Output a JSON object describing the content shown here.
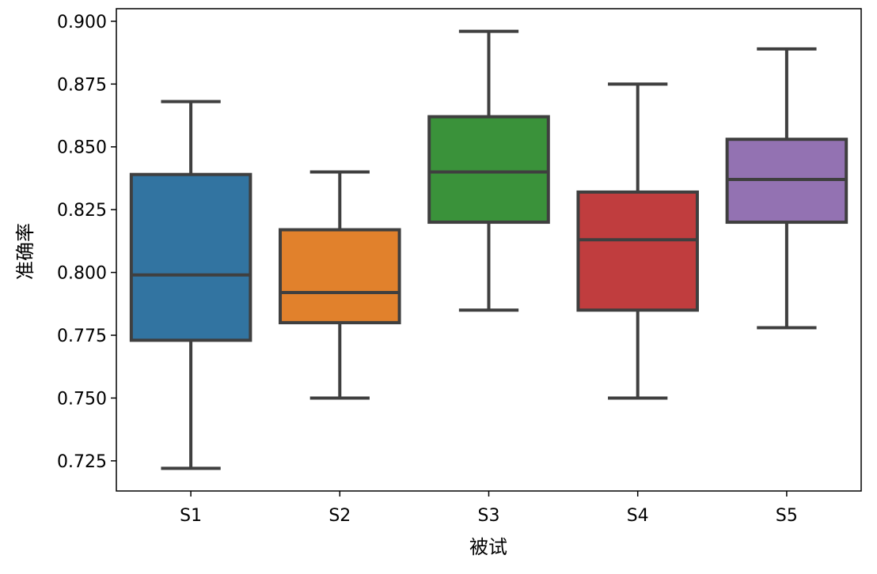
{
  "chart_data": {
    "type": "box",
    "title": "",
    "xlabel": "被试",
    "ylabel": "准确率",
    "categories": [
      "S1",
      "S2",
      "S3",
      "S4",
      "S5"
    ],
    "ylim": [
      0.713,
      0.905
    ],
    "yticks": [
      0.725,
      0.75,
      0.775,
      0.8,
      0.825,
      0.85,
      0.875,
      0.9
    ],
    "ytick_labels": [
      "0.725",
      "0.750",
      "0.775",
      "0.800",
      "0.825",
      "0.850",
      "0.875",
      "0.900"
    ],
    "grid": false,
    "boxes": [
      {
        "category": "S1",
        "whisker_low": 0.722,
        "q1": 0.773,
        "median": 0.799,
        "q3": 0.839,
        "whisker_high": 0.868,
        "color": "#3274a1"
      },
      {
        "category": "S2",
        "whisker_low": 0.75,
        "q1": 0.78,
        "median": 0.792,
        "q3": 0.817,
        "whisker_high": 0.84,
        "color": "#e1812c"
      },
      {
        "category": "S3",
        "whisker_low": 0.785,
        "q1": 0.82,
        "median": 0.84,
        "q3": 0.862,
        "whisker_high": 0.896,
        "color": "#3a923a"
      },
      {
        "category": "S4",
        "whisker_low": 0.75,
        "q1": 0.785,
        "median": 0.813,
        "q3": 0.832,
        "whisker_high": 0.875,
        "color": "#c03d3e"
      },
      {
        "category": "S5",
        "whisker_low": 0.778,
        "q1": 0.82,
        "median": 0.837,
        "q3": 0.853,
        "whisker_high": 0.889,
        "color": "#9372b2"
      }
    ]
  }
}
